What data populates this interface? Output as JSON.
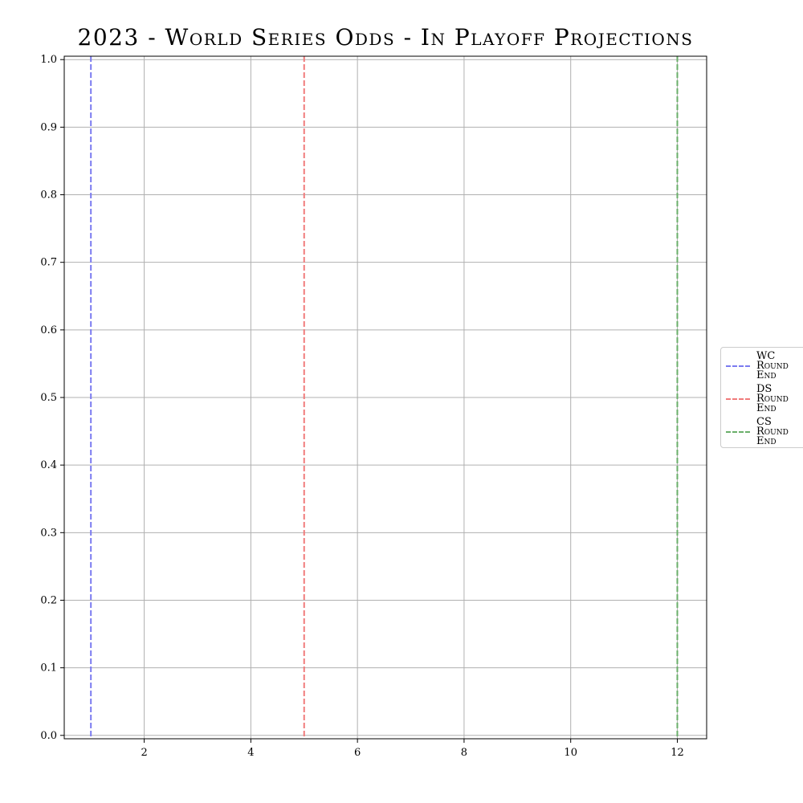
{
  "chart_data": {
    "type": "line",
    "title": "2023 - World Series Odds - In Playoff Projections",
    "xlabel": "",
    "ylabel": "",
    "xlim": [
      0.5,
      12.55
    ],
    "ylim": [
      -0.005,
      1.005
    ],
    "x_ticks": [
      2,
      4,
      6,
      8,
      10,
      12
    ],
    "y_ticks": [
      0.0,
      0.1,
      0.2,
      0.3,
      0.4,
      0.5,
      0.6,
      0.7,
      0.8,
      0.9,
      1.0
    ],
    "x_tick_labels": [
      "2",
      "4",
      "6",
      "8",
      "10",
      "12"
    ],
    "y_tick_labels": [
      "0.0",
      "0.1",
      "0.2",
      "0.3",
      "0.4",
      "0.5",
      "0.6",
      "0.7",
      "0.8",
      "0.9",
      "1.0"
    ],
    "grid": true,
    "legend_position": "center-right-outside",
    "series": [],
    "vertical_lines": [
      {
        "name": "WC Round End",
        "x": 1,
        "color": "#7b7bf0",
        "style": "dashed"
      },
      {
        "name": "DS Round End",
        "x": 5,
        "color": "#f07b7b",
        "style": "dashed"
      },
      {
        "name": "CS Round End",
        "x": 12,
        "color": "#6aaf6a",
        "style": "dashed"
      }
    ]
  }
}
